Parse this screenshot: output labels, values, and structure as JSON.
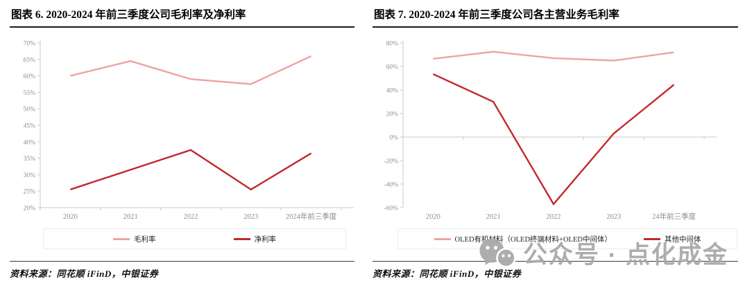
{
  "watermark": {
    "text": "公众号 · 点化成金",
    "icon": "wechat-icon",
    "color": "#a9a9a9"
  },
  "palette": {
    "series_pink": "#EFA3A1",
    "series_dark_red": "#C1272D",
    "axis_line": "#c9c9c9",
    "tick_label": "#8c8c8c"
  },
  "charts": [
    {
      "title": "图表 6. 2020-2024 年前三季度公司毛利率及净利率",
      "source": "资料来源：同花顺 iFinD，中银证券",
      "chart_data": {
        "type": "line",
        "categories": [
          "2020",
          "2021",
          "2022",
          "2023",
          "2024年前三季度"
        ],
        "series": [
          {
            "name": "毛利率",
            "color": "#EFA3A1",
            "values": [
              60,
              64.5,
              59,
              57.5,
              66
            ]
          },
          {
            "name": "净利率",
            "color": "#C1272D",
            "values": [
              25.5,
              31.5,
              37.5,
              25.5,
              36.5
            ]
          }
        ],
        "ylim": [
          20,
          70
        ],
        "ytick_step": 5,
        "ytick_labels": [
          "20%",
          "25%",
          "30%",
          "35%",
          "40%",
          "45%",
          "50%",
          "55%",
          "60%",
          "65%",
          "70%"
        ],
        "grid": false,
        "category_axis_at": 20,
        "legend_position": "bottom",
        "xlabel": "",
        "ylabel": ""
      }
    },
    {
      "title": "图表 7. 2020-2024 年前三季度公司各主营业务毛利率",
      "source": "资料来源：同花顺 iFinD，中银证券",
      "chart_data": {
        "type": "line",
        "categories": [
          "2020",
          "2021",
          "2022",
          "2023",
          "24年前三季度"
        ],
        "series": [
          {
            "name": "OLED有机材料（OLED终端材料+OLED中间体）",
            "color": "#EFA3A1",
            "values": [
              66.5,
              72.5,
              67,
              65,
              72
            ]
          },
          {
            "name": "其他中间体",
            "color": "#C1272D",
            "values": [
              53.5,
              30,
              -57,
              3,
              44.5
            ]
          }
        ],
        "ylim": [
          -60,
          80
        ],
        "ytick_step": 20,
        "ytick_labels": [
          "-60%",
          "-40%",
          "-20%",
          "0%",
          "20%",
          "40%",
          "60%",
          "80%"
        ],
        "grid": false,
        "category_axis_at": 0,
        "legend_position": "bottom",
        "xlabel": "",
        "ylabel": ""
      }
    }
  ]
}
